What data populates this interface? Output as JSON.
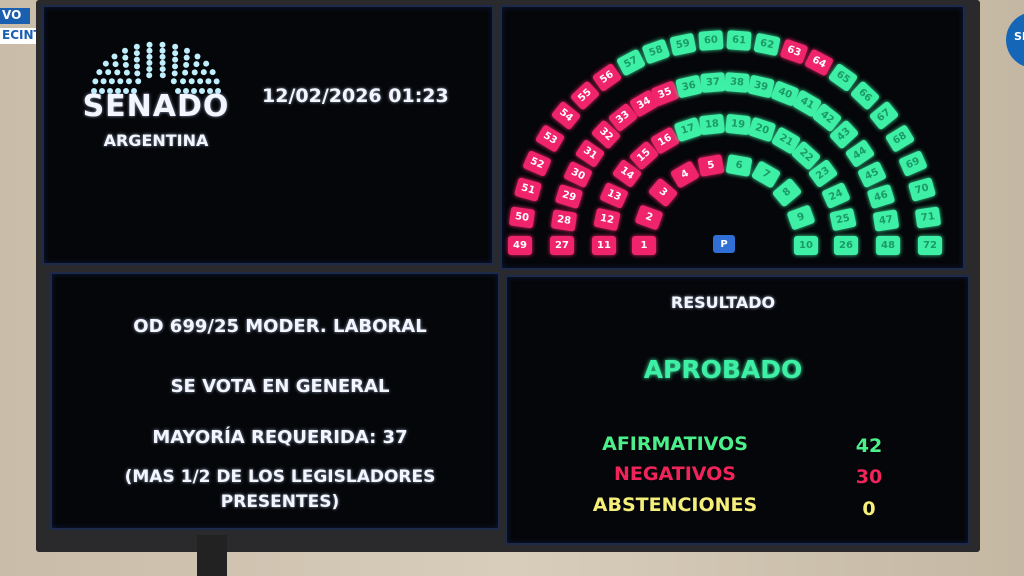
{
  "overlay": {
    "live_label": "VO",
    "location_label": "ECINTO",
    "corner_badge": "SE"
  },
  "header": {
    "logo_title": "SENADO",
    "logo_subtitle": "ARGENTINA",
    "datetime": "12/02/2026 01:23"
  },
  "chamber": {
    "seats_total": 72,
    "negative_seats": [
      1,
      2,
      3,
      4,
      5,
      11,
      12,
      13,
      14,
      15,
      16,
      27,
      28,
      29,
      30,
      31,
      32,
      33,
      34,
      35,
      49,
      50,
      51,
      52,
      53,
      54,
      55,
      56,
      63,
      64
    ],
    "president_label": "P",
    "colors": {
      "afirmativo": "#3ef0a6",
      "negativo": "#f0246a",
      "president": "#2f6fd6"
    }
  },
  "motion": {
    "title": "OD 699/25 MODER. LABORAL",
    "vote_type": "SE VOTA EN GENERAL",
    "majority": "MAYORÍA REQUERIDA: 37",
    "note_line1": "(MAS 1/2 DE LOS LEGISLADORES",
    "note_line2": "PRESENTES)"
  },
  "result": {
    "heading": "RESULTADO",
    "outcome": "APROBADO",
    "afirmativos_label": "AFIRMATIVOS",
    "afirmativos": "42",
    "negativos_label": "NEGATIVOS",
    "negativos": "30",
    "abstenciones_label": "ABSTENCIONES",
    "abstenciones": "0"
  }
}
